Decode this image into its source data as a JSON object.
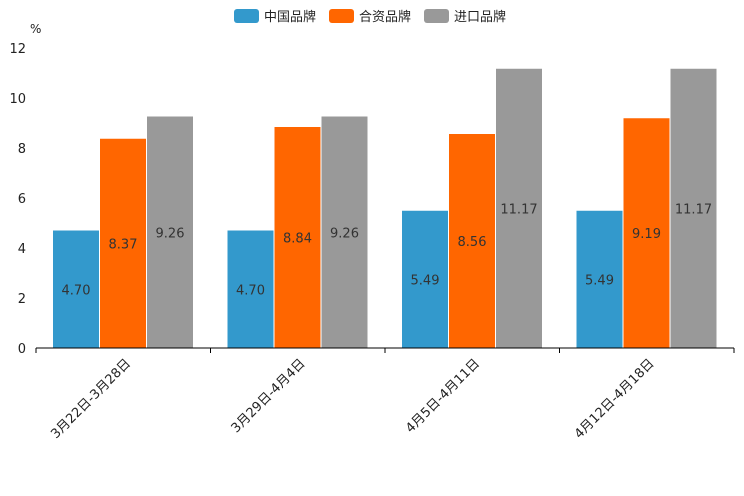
{
  "chart_data": {
    "type": "bar",
    "title": "",
    "xlabel": "",
    "ylabel": "%",
    "ylim": [
      0,
      12
    ],
    "yticks": [
      0,
      2,
      4,
      6,
      8,
      10,
      12
    ],
    "legend_position": "top-center",
    "grid": false,
    "categories": [
      "3月22日-3月28日",
      "3月29日-4月4日",
      "4月5日-4月11日",
      "4月12日-4月18日"
    ],
    "series": [
      {
        "name": "中国品牌",
        "color": "#3399cc",
        "values": [
          4.7,
          4.7,
          5.49,
          5.49
        ],
        "labels": [
          "4.70",
          "4.70",
          "5.49",
          "5.49"
        ]
      },
      {
        "name": "合资品牌",
        "color": "#ff6600",
        "values": [
          8.37,
          8.84,
          8.56,
          9.19
        ],
        "labels": [
          "8.37",
          "8.84",
          "8.56",
          "9.19"
        ]
      },
      {
        "name": "进口品牌",
        "color": "#999999",
        "values": [
          9.26,
          9.26,
          11.17,
          11.17
        ],
        "labels": [
          "9.26",
          "9.26",
          "11.17",
          "11.17"
        ]
      }
    ]
  }
}
